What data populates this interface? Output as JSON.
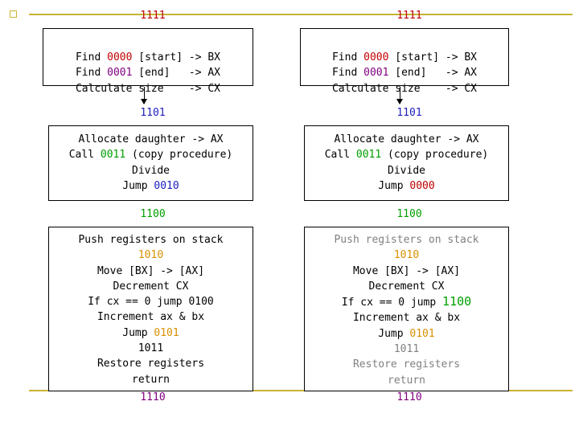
{
  "left": {
    "top_label": "1111",
    "box1": [
      {
        "pre": "Find ",
        "code": "0000",
        "post": " [start] -> BX"
      },
      {
        "pre": "Find ",
        "code": "0001",
        "post": " [end]   -> AX"
      },
      {
        "pre": "Calculate size    -> CX",
        "code": "",
        "post": ""
      }
    ],
    "label2": "1101",
    "box2": {
      "line1": "Allocate daughter -> AX",
      "line2_pre": "Call ",
      "line2_code": "0011",
      "line2_post": " (copy procedure)",
      "line3": "Divide",
      "line4_pre": "Jump ",
      "line4_code": "0010"
    },
    "label3": "1100",
    "box3": {
      "l1": "Push registers on stack",
      "l2": "1010",
      "l3": "Move [BX] -> [AX]",
      "l4": "Decrement CX",
      "l5": "If cx == 0 jump 0100",
      "l6": "Increment ax & bx",
      "l7_pre": "Jump ",
      "l7_code": "0101",
      "l8": "1011",
      "l9": "Restore registers",
      "l10": "return"
    },
    "bottom_label": "1110"
  },
  "right": {
    "top_label": "1111",
    "box1": [
      {
        "pre": "Find ",
        "code": "0000",
        "post": " [start] -> BX"
      },
      {
        "pre": "Find ",
        "code": "0001",
        "post": " [end]   -> AX"
      },
      {
        "pre": "Calculate size    -> CX",
        "code": "",
        "post": ""
      }
    ],
    "label2": "1101",
    "box2": {
      "line1": "Allocate daughter -> AX",
      "line2_pre": "Call ",
      "line2_code": "0011",
      "line2_post": " (copy procedure)",
      "line3": "Divide",
      "line4_pre": "Jump ",
      "line4_code": "0000"
    },
    "label3": "1100",
    "box3": {
      "l1": "Push registers on stack",
      "l2": "1010",
      "l3": "Move [BX] -> [AX]",
      "l4": "Decrement CX",
      "l5_pre": "If cx == 0 jump ",
      "l5_code": "1100",
      "l6": "Increment ax & bx",
      "l7_pre": "Jump ",
      "l7_code": "0101",
      "l8": "1011",
      "l9": "Restore registers",
      "l10": "return"
    },
    "bottom_label": "1110"
  },
  "colors": {
    "accent_line": "#c8b432",
    "red": "#c00000",
    "purple": "#800080",
    "blue": "#2020c0",
    "green": "#00a000",
    "orange": "#d89000",
    "gray": "#808080"
  }
}
